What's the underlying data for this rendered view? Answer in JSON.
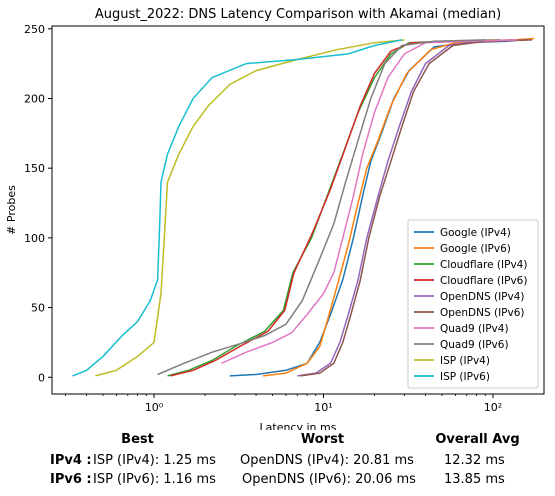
{
  "chart_data": {
    "type": "line",
    "title": "August_2022: DNS Latency Comparison with Akamai (median)",
    "xlabel": "Latency in ms",
    "ylabel": "# Probes",
    "xscale": "log",
    "xlim": [
      0.25,
      200
    ],
    "ylim": [
      -12,
      252
    ],
    "x_ticks": [
      1,
      10,
      100
    ],
    "x_tick_labels": [
      "10⁰",
      "10¹",
      "10²"
    ],
    "y_ticks": [
      0,
      50,
      100,
      150,
      200,
      250
    ],
    "y_tick_labels": [
      "0",
      "50",
      "100",
      "150",
      "200",
      "250"
    ],
    "grid": false,
    "legend_position": "lower-right",
    "series": [
      {
        "name": "Google (IPv4)",
        "color": "#1f77b4",
        "points": [
          [
            2.8,
            1
          ],
          [
            4,
            2
          ],
          [
            6,
            5
          ],
          [
            8,
            10
          ],
          [
            9.5,
            25
          ],
          [
            11,
            45
          ],
          [
            13,
            70
          ],
          [
            15,
            100
          ],
          [
            17,
            130
          ],
          [
            19,
            155
          ],
          [
            22,
            175
          ],
          [
            26,
            200
          ],
          [
            32,
            220
          ],
          [
            45,
            237
          ],
          [
            70,
            240
          ],
          [
            120,
            241
          ],
          [
            150,
            242
          ]
        ]
      },
      {
        "name": "Google (IPv6)",
        "color": "#ff7f0e",
        "points": [
          [
            4.4,
            1
          ],
          [
            6,
            3
          ],
          [
            8,
            10
          ],
          [
            9.5,
            22
          ],
          [
            10.5,
            40
          ],
          [
            12,
            65
          ],
          [
            14,
            95
          ],
          [
            16,
            125
          ],
          [
            18,
            150
          ],
          [
            21,
            170
          ],
          [
            25,
            195
          ],
          [
            31,
            218
          ],
          [
            43,
            235
          ],
          [
            60,
            240
          ],
          [
            100,
            241
          ],
          [
            175,
            243
          ]
        ]
      },
      {
        "name": "Cloudflare (IPv4)",
        "color": "#2ca02c",
        "points": [
          [
            1.2,
            1
          ],
          [
            1.6,
            5
          ],
          [
            2.2,
            12
          ],
          [
            3,
            22
          ],
          [
            4.5,
            33
          ],
          [
            5.8,
            48
          ],
          [
            6.6,
            75
          ],
          [
            8.5,
            100
          ],
          [
            10.5,
            130
          ],
          [
            13,
            160
          ],
          [
            16,
            190
          ],
          [
            20,
            215
          ],
          [
            25,
            232
          ],
          [
            32,
            240
          ],
          [
            50,
            241
          ],
          [
            110,
            242
          ]
        ]
      },
      {
        "name": "Cloudflare (IPv6)",
        "color": "#d62728",
        "points": [
          [
            1.25,
            1
          ],
          [
            1.7,
            5
          ],
          [
            2.3,
            12
          ],
          [
            3.2,
            22
          ],
          [
            4.7,
            33
          ],
          [
            5.9,
            48
          ],
          [
            6.7,
            75
          ],
          [
            8.7,
            105
          ],
          [
            11,
            135
          ],
          [
            13.5,
            165
          ],
          [
            16.5,
            195
          ],
          [
            20,
            218
          ],
          [
            25,
            234
          ],
          [
            33,
            240
          ],
          [
            60,
            241
          ],
          [
            130,
            242
          ]
        ]
      },
      {
        "name": "OpenDNS (IPv4)",
        "color": "#9467bd",
        "points": [
          [
            7,
            1
          ],
          [
            9,
            3
          ],
          [
            11,
            10
          ],
          [
            12.5,
            25
          ],
          [
            14,
            45
          ],
          [
            16,
            70
          ],
          [
            18,
            100
          ],
          [
            21,
            130
          ],
          [
            24,
            155
          ],
          [
            28,
            180
          ],
          [
            33,
            205
          ],
          [
            40,
            225
          ],
          [
            55,
            238
          ],
          [
            80,
            241
          ],
          [
            160,
            242
          ]
        ]
      },
      {
        "name": "OpenDNS (IPv6)",
        "color": "#8c564b",
        "points": [
          [
            7.3,
            1
          ],
          [
            9.5,
            3
          ],
          [
            11.5,
            10
          ],
          [
            13,
            25
          ],
          [
            14.5,
            45
          ],
          [
            16.5,
            70
          ],
          [
            18.5,
            100
          ],
          [
            21.5,
            130
          ],
          [
            25,
            155
          ],
          [
            29,
            180
          ],
          [
            34,
            205
          ],
          [
            42,
            225
          ],
          [
            58,
            238
          ],
          [
            90,
            241
          ],
          [
            170,
            242
          ]
        ]
      },
      {
        "name": "Quad9 (IPv4)",
        "color": "#e377c2",
        "points": [
          [
            2.5,
            10
          ],
          [
            3.5,
            18
          ],
          [
            5,
            25
          ],
          [
            6.5,
            32
          ],
          [
            8,
            45
          ],
          [
            10,
            60
          ],
          [
            11.5,
            75
          ],
          [
            13,
            100
          ],
          [
            15,
            130
          ],
          [
            17,
            160
          ],
          [
            20,
            190
          ],
          [
            24,
            215
          ],
          [
            30,
            232
          ],
          [
            40,
            240
          ],
          [
            70,
            241
          ],
          [
            140,
            242
          ]
        ]
      },
      {
        "name": "Quad9 (IPv6)",
        "color": "#7f7f7f",
        "points": [
          [
            1.05,
            2
          ],
          [
            1.5,
            10
          ],
          [
            2.2,
            18
          ],
          [
            3.2,
            24
          ],
          [
            4.5,
            30
          ],
          [
            6,
            38
          ],
          [
            7.5,
            55
          ],
          [
            9.5,
            85
          ],
          [
            11.5,
            110
          ],
          [
            13.5,
            140
          ],
          [
            16,
            170
          ],
          [
            19,
            200
          ],
          [
            23,
            225
          ],
          [
            29,
            238
          ],
          [
            45,
            241
          ],
          [
            90,
            242
          ]
        ]
      },
      {
        "name": "ISP (IPv4)",
        "color": "#bcbd22",
        "points": [
          [
            0.45,
            1
          ],
          [
            0.6,
            5
          ],
          [
            0.8,
            15
          ],
          [
            1.0,
            25
          ],
          [
            1.1,
            60
          ],
          [
            1.15,
            100
          ],
          [
            1.2,
            140
          ],
          [
            1.4,
            160
          ],
          [
            1.7,
            180
          ],
          [
            2.1,
            195
          ],
          [
            2.8,
            210
          ],
          [
            4,
            220
          ],
          [
            7,
            228
          ],
          [
            12,
            235
          ],
          [
            20,
            240
          ],
          [
            30,
            242
          ]
        ]
      },
      {
        "name": "ISP (IPv6)",
        "color": "#17becf",
        "points": [
          [
            0.33,
            1
          ],
          [
            0.4,
            5
          ],
          [
            0.5,
            15
          ],
          [
            0.65,
            30
          ],
          [
            0.8,
            40
          ],
          [
            0.95,
            55
          ],
          [
            1.05,
            70
          ],
          [
            1.08,
            110
          ],
          [
            1.1,
            140
          ],
          [
            1.2,
            160
          ],
          [
            1.4,
            180
          ],
          [
            1.7,
            200
          ],
          [
            2.2,
            215
          ],
          [
            3.5,
            225
          ],
          [
            7,
            228
          ],
          [
            14,
            232
          ],
          [
            20,
            238
          ],
          [
            29,
            242
          ]
        ]
      }
    ]
  },
  "summary": {
    "headers": {
      "best": "Best",
      "worst": "Worst",
      "avg": "Overall Avg"
    },
    "rows": [
      {
        "label": "IPv4 :",
        "best": "ISP (IPv4): 1.25 ms",
        "worst": "OpenDNS (IPv4): 20.81 ms",
        "avg": "12.32 ms"
      },
      {
        "label": "IPv6 :",
        "best": "ISP (IPv6): 1.16 ms",
        "worst": "OpenDNS (IPv6): 20.06 ms",
        "avg": "13.85 ms"
      }
    ]
  }
}
